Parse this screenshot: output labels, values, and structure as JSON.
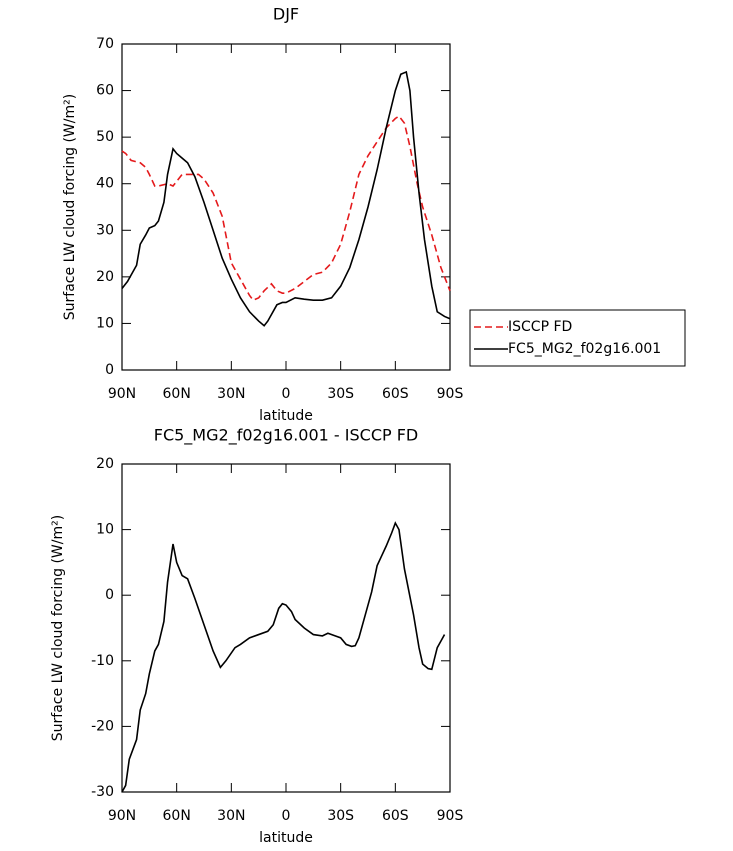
{
  "chart_data": [
    {
      "type": "line",
      "title": "DJF",
      "xlabel": "latitude",
      "ylabel": "Surface LW cloud forcing (W/m²)",
      "xlim": [
        90,
        -90
      ],
      "xticks": [
        {
          "value": 90,
          "label": "90N"
        },
        {
          "value": 60,
          "label": "60N"
        },
        {
          "value": 30,
          "label": "30N"
        },
        0,
        {
          "value": -30,
          "label": "30S"
        },
        {
          "value": -60,
          "label": "60S"
        },
        {
          "value": -90,
          "label": "90S"
        }
      ],
      "ylim": [
        0,
        70
      ],
      "yticks": [
        0,
        10,
        20,
        30,
        40,
        50,
        60,
        70
      ],
      "legend": "outside right",
      "series": [
        {
          "name": "ISCCP FD",
          "color": "#e41a1c",
          "linestyle": "dashed",
          "x": [
            90,
            88,
            85,
            80,
            77,
            75,
            72,
            70,
            65,
            62,
            60,
            57,
            52,
            48,
            45,
            40,
            35,
            32,
            30,
            25,
            20,
            18,
            15,
            12,
            8,
            5,
            2,
            0,
            -5,
            -10,
            -15,
            -20,
            -25,
            -30,
            -35,
            -40,
            -45,
            -50,
            -55,
            -60,
            -62,
            -65,
            -68,
            -72,
            -75,
            -80,
            -85,
            -90
          ],
          "values": [
            47,
            46.5,
            45,
            44.5,
            43.5,
            42,
            39.5,
            39.5,
            40,
            39.5,
            40.5,
            42,
            42,
            42,
            41,
            38,
            33,
            27,
            23,
            19.5,
            16,
            15,
            15.5,
            17,
            18.5,
            17,
            16.5,
            16.5,
            17.5,
            19,
            20.5,
            21,
            23,
            27,
            34,
            42,
            46,
            49,
            52,
            54,
            54.5,
            53,
            48,
            40,
            35,
            29,
            22,
            17
          ]
        },
        {
          "name": "FC5_MG2_f02g16.001",
          "color": "#000000",
          "linestyle": "solid",
          "x": [
            90,
            87,
            82,
            80,
            77,
            75,
            72,
            70,
            67,
            65,
            62,
            60,
            57,
            54,
            50,
            45,
            40,
            35,
            30,
            25,
            20,
            15,
            12,
            10,
            5,
            2,
            0,
            -5,
            -10,
            -15,
            -20,
            -25,
            -30,
            -35,
            -40,
            -45,
            -50,
            -55,
            -60,
            -63,
            -66,
            -68,
            -70,
            -73,
            -76,
            -80,
            -83,
            -87,
            -90
          ],
          "values": [
            17.5,
            19,
            22.5,
            27,
            29,
            30.5,
            31,
            32,
            36,
            42,
            47.5,
            46.5,
            45.5,
            44.5,
            41.5,
            36,
            30,
            24,
            19.5,
            15.5,
            12.5,
            10.5,
            9.5,
            10.5,
            14,
            14.5,
            14.5,
            15.5,
            15.2,
            15,
            15,
            15.5,
            18,
            22,
            28,
            35,
            43,
            52,
            60,
            63.5,
            64,
            60,
            50,
            38,
            28,
            18,
            12.5,
            11.5,
            11
          ]
        }
      ]
    },
    {
      "type": "line",
      "title": "FC5_MG2_f02g16.001 - ISCCP FD",
      "xlabel": "latitude",
      "ylabel": "Surface LW cloud forcing (W/m²)",
      "xlim": [
        90,
        -90
      ],
      "xticks": [
        {
          "value": 90,
          "label": "90N"
        },
        {
          "value": 60,
          "label": "60N"
        },
        {
          "value": 30,
          "label": "30N"
        },
        0,
        {
          "value": -30,
          "label": "30S"
        },
        {
          "value": -60,
          "label": "60S"
        },
        {
          "value": -90,
          "label": "90S"
        }
      ],
      "ylim": [
        -30,
        20
      ],
      "yticks": [
        -30,
        -20,
        -10,
        0,
        10,
        20
      ],
      "series": [
        {
          "color": "#000000",
          "linestyle": "solid",
          "x": [
            90,
            88,
            86,
            82,
            80,
            77,
            75,
            72,
            70,
            67,
            65,
            62,
            60,
            57,
            54,
            50,
            45,
            40,
            36,
            33,
            28,
            25,
            20,
            15,
            10,
            7,
            4,
            2,
            0,
            -3,
            -5,
            -10,
            -15,
            -20,
            -23,
            -27,
            -30,
            -33,
            -36,
            -38,
            -40,
            -45,
            -47,
            -50,
            -55,
            -58,
            -60,
            -62,
            -65,
            -70,
            -73,
            -75,
            -78,
            -80,
            -83,
            -85,
            -87
          ],
          "values": [
            -30,
            -29,
            -25,
            -22,
            -17.5,
            -15,
            -12,
            -8.5,
            -7.5,
            -4,
            2,
            7.8,
            5,
            3,
            2.5,
            -0.5,
            -4.5,
            -8.5,
            -11,
            -10,
            -8,
            -7.5,
            -6.5,
            -6,
            -5.5,
            -4.5,
            -2,
            -1.3,
            -1.5,
            -2.5,
            -3.7,
            -5,
            -6,
            -6.2,
            -5.8,
            -6.2,
            -6.5,
            -7.5,
            -7.8,
            -7.7,
            -6.5,
            -1.5,
            0.5,
            4.5,
            7.5,
            9.5,
            11,
            10,
            4,
            -3,
            -8,
            -10.5,
            -11.2,
            -11.3,
            -8,
            -7,
            -6
          ]
        }
      ]
    }
  ]
}
